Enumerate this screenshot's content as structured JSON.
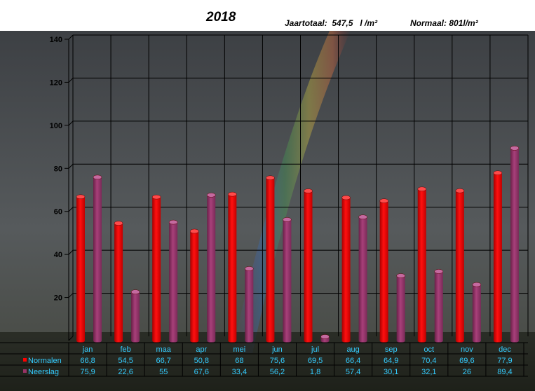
{
  "header": {
    "title": "2018",
    "total_text": "Jaartotaal:  547,5   l /m²",
    "normal_text": "Normaal: 801l/m²"
  },
  "chart_data": {
    "type": "bar",
    "categories": [
      "jan",
      "feb",
      "maa",
      "apr",
      "mei",
      "jun",
      "jul",
      "aug",
      "sep",
      "oct",
      "nov",
      "dec"
    ],
    "series": [
      {
        "name": "Normalen",
        "color": "#ff0000",
        "values": [
          66.8,
          54.5,
          66.7,
          50.8,
          68,
          75.6,
          69.5,
          66.4,
          64.9,
          70.4,
          69.6,
          77.9
        ],
        "labels": [
          "66,8",
          "54,5",
          "66,7",
          "50,8",
          "68",
          "75,6",
          "69,5",
          "66,4",
          "64,9",
          "70,4",
          "69,6",
          "77,9"
        ]
      },
      {
        "name": "Neerslag",
        "color": "#993366",
        "values": [
          75.9,
          22.6,
          55,
          67.6,
          33.4,
          56.2,
          1.8,
          57.4,
          30.1,
          32.1,
          26,
          89.4
        ],
        "labels": [
          "75,9",
          "22,6",
          "55",
          "67,6",
          "33,4",
          "56,2",
          "1,8",
          "57,4",
          "30,1",
          "32,1",
          "26",
          "89,4"
        ]
      }
    ],
    "yticks": [
      "20",
      "40",
      "60",
      "80",
      "100",
      "120",
      "140"
    ],
    "ylim": [
      0,
      140
    ],
    "grid": true,
    "legend": "table-below",
    "table_text_color": "#33ccff",
    "background": "photo of rainbow over dark sky"
  }
}
